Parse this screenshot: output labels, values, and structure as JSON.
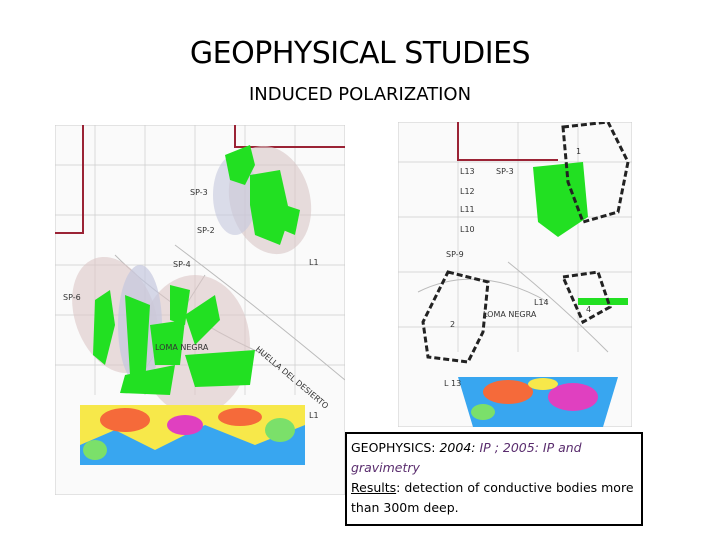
{
  "header": {
    "title": "GEOPHYSICAL STUDIES",
    "subtitle": "INDUCED POLARIZATION"
  },
  "left_map": {
    "labels": [
      "SP-3",
      "SP-2",
      "SP-4",
      "SP-6",
      "L1",
      "LOMA NEGRA",
      "HUELLA DEL DESIERTO",
      "L1"
    ]
  },
  "right_map": {
    "labels": [
      "L13",
      "L12",
      "L11",
      "L10",
      "SP-3",
      "SP-9",
      "1",
      "2",
      "4",
      "L14",
      "LOMA NEGRA",
      "L 13"
    ]
  },
  "info": {
    "heading": "GEOPHYSICS:",
    "year": "2004:",
    "detail": "IP ; 2005: IP and gravimetry",
    "results_label": "Results",
    "results": ": detection of conductive bodies more than 300m deep."
  }
}
